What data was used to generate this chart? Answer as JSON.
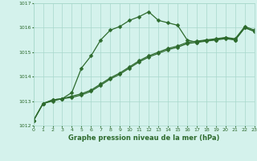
{
  "series1": {
    "x": [
      0,
      1,
      2,
      3,
      4,
      5,
      6,
      7,
      8,
      9,
      10,
      11,
      12,
      13,
      14,
      15,
      16,
      17,
      18,
      19,
      20,
      21,
      22,
      23
    ],
    "y": [
      1012.2,
      1012.9,
      1013.0,
      1013.1,
      1013.35,
      1014.35,
      1014.85,
      1015.5,
      1015.9,
      1016.05,
      1016.3,
      1016.45,
      1016.65,
      1016.3,
      1016.2,
      1016.1,
      1015.5,
      1015.4,
      1015.5,
      1015.5,
      1015.6,
      1015.5,
      1016.0,
      1015.85
    ]
  },
  "series2": {
    "x": [
      0,
      1,
      2,
      3,
      4,
      5,
      6,
      7,
      8,
      9,
      10,
      11,
      12,
      13,
      14,
      15,
      16,
      17,
      18,
      19,
      20,
      21,
      22,
      23
    ],
    "y": [
      1012.2,
      1012.9,
      1013.05,
      1013.1,
      1013.15,
      1013.25,
      1013.4,
      1013.65,
      1013.9,
      1014.1,
      1014.35,
      1014.6,
      1014.8,
      1014.95,
      1015.1,
      1015.2,
      1015.35,
      1015.4,
      1015.45,
      1015.5,
      1015.55,
      1015.5,
      1016.0,
      1015.85
    ]
  },
  "series3": {
    "x": [
      0,
      1,
      2,
      3,
      4,
      5,
      6,
      7,
      8,
      9,
      10,
      11,
      12,
      13,
      14,
      15,
      16,
      17,
      18,
      19,
      20,
      21,
      22,
      23
    ],
    "y": [
      1012.2,
      1012.9,
      1013.05,
      1013.1,
      1013.2,
      1013.3,
      1013.45,
      1013.7,
      1013.95,
      1014.15,
      1014.4,
      1014.65,
      1014.85,
      1015.0,
      1015.15,
      1015.25,
      1015.4,
      1015.45,
      1015.5,
      1015.55,
      1015.6,
      1015.55,
      1016.05,
      1015.9
    ]
  },
  "line_color": "#2d6a2d",
  "bg_color": "#d4f2ec",
  "grid_color": "#a8d8cc",
  "xlabel": "Graphe pression niveau de la mer (hPa)",
  "ylim": [
    1012,
    1017
  ],
  "xlim": [
    0,
    23
  ],
  "yticks": [
    1012,
    1013,
    1014,
    1015,
    1016,
    1017
  ],
  "xticks": [
    0,
    1,
    2,
    3,
    4,
    5,
    6,
    7,
    8,
    9,
    10,
    11,
    12,
    13,
    14,
    15,
    16,
    17,
    18,
    19,
    20,
    21,
    22,
    23
  ]
}
